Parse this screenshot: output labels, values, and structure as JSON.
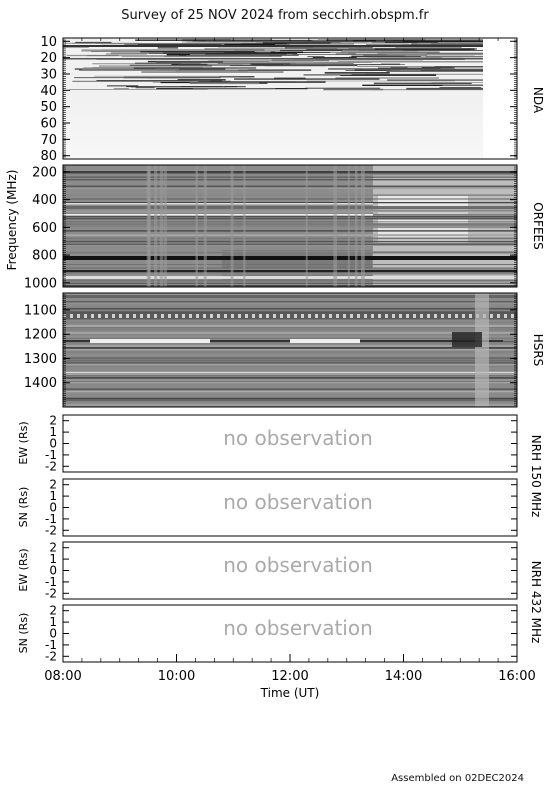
{
  "title": "Survey of 25 NOV 2024 from secchirh.obspm.fr",
  "footer": "Assembled on 02DEC2024",
  "xlabel": "Time (UT)",
  "x_ticks": [
    "08:00",
    "10:00",
    "12:00",
    "14:00",
    "16:00"
  ],
  "no_obs_text": "no observation",
  "spectro_ylabel": "Frequency (MHz)",
  "nrh_150_label": "NRH 150 MHz",
  "nrh_432_label": "NRH 432 MHz",
  "chart_data": [
    {
      "type": "heatmap",
      "name": "NDA",
      "y_ticks": [
        "10",
        "20",
        "30",
        "40",
        "50",
        "60",
        "70",
        "80"
      ],
      "ylim": [
        8,
        82
      ],
      "xlim": [
        "08:00",
        "16:00"
      ],
      "data_end": "15:20"
    },
    {
      "type": "heatmap",
      "name": "ORFEES",
      "y_ticks": [
        "200",
        "400",
        "600",
        "800",
        "1000"
      ],
      "ylim": [
        150,
        1030
      ],
      "xlim": [
        "08:00",
        "16:00"
      ]
    },
    {
      "type": "heatmap",
      "name": "HSRS",
      "y_ticks": [
        "1100",
        "1200",
        "1300",
        "1400"
      ],
      "ylim": [
        1030,
        1500
      ],
      "xlim": [
        "08:00",
        "16:00"
      ]
    },
    {
      "type": "line",
      "name": "EW (Rs)",
      "y_ticks": [
        "2",
        "1",
        "0",
        "-1",
        "-2"
      ],
      "ylim": [
        -2.5,
        2.5
      ]
    },
    {
      "type": "line",
      "name": "SN (Rs)",
      "y_ticks": [
        "2",
        "1",
        "0",
        "-1",
        "-2"
      ],
      "ylim": [
        -2.5,
        2.5
      ]
    },
    {
      "type": "line",
      "name": "EW (Rs)",
      "y_ticks": [
        "2",
        "1",
        "0",
        "-1",
        "-2"
      ],
      "ylim": [
        -2.5,
        2.5
      ]
    },
    {
      "type": "line",
      "name": "SN (Rs)",
      "y_ticks": [
        "2",
        "1",
        "0",
        "-1",
        "-2"
      ],
      "ylim": [
        -2.5,
        2.5
      ]
    }
  ]
}
